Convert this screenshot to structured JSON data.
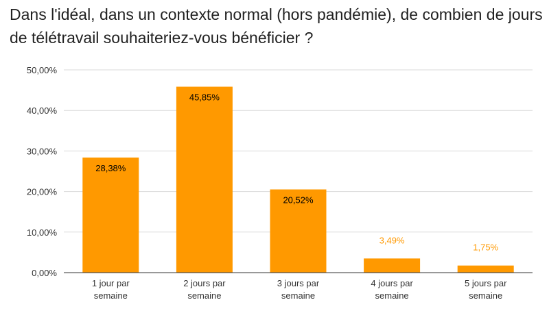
{
  "chart_data": {
    "type": "bar",
    "title": "Dans l'idéal, dans un contexte normal (hors pandémie), de combien de jours de télétravail souhaiteriez-vous bénéficier ?",
    "categories": [
      [
        "1 jour par",
        "semaine"
      ],
      [
        "2 jours par",
        "semaine"
      ],
      [
        "3 jours par",
        "semaine"
      ],
      [
        "4 jours par",
        "semaine"
      ],
      [
        "5 jours par",
        "semaine"
      ]
    ],
    "values": [
      28.38,
      45.85,
      20.52,
      3.49,
      1.75
    ],
    "data_labels": [
      "28,38%",
      "45,85%",
      "20,52%",
      "3,49%",
      "1,75%"
    ],
    "y_ticks": [
      0,
      10,
      20,
      30,
      40,
      50
    ],
    "y_tick_labels": [
      "0,00%",
      "10,00%",
      "20,00%",
      "30,00%",
      "40,00%",
      "50,00%"
    ],
    "ylim": [
      0,
      50
    ],
    "grid": true,
    "legend": "none",
    "colors": {
      "bar": "#ff9900",
      "label_inside": "#000000",
      "label_outside": "#ff9900",
      "grid": "#d9d9d9",
      "axis": "#333333"
    }
  }
}
